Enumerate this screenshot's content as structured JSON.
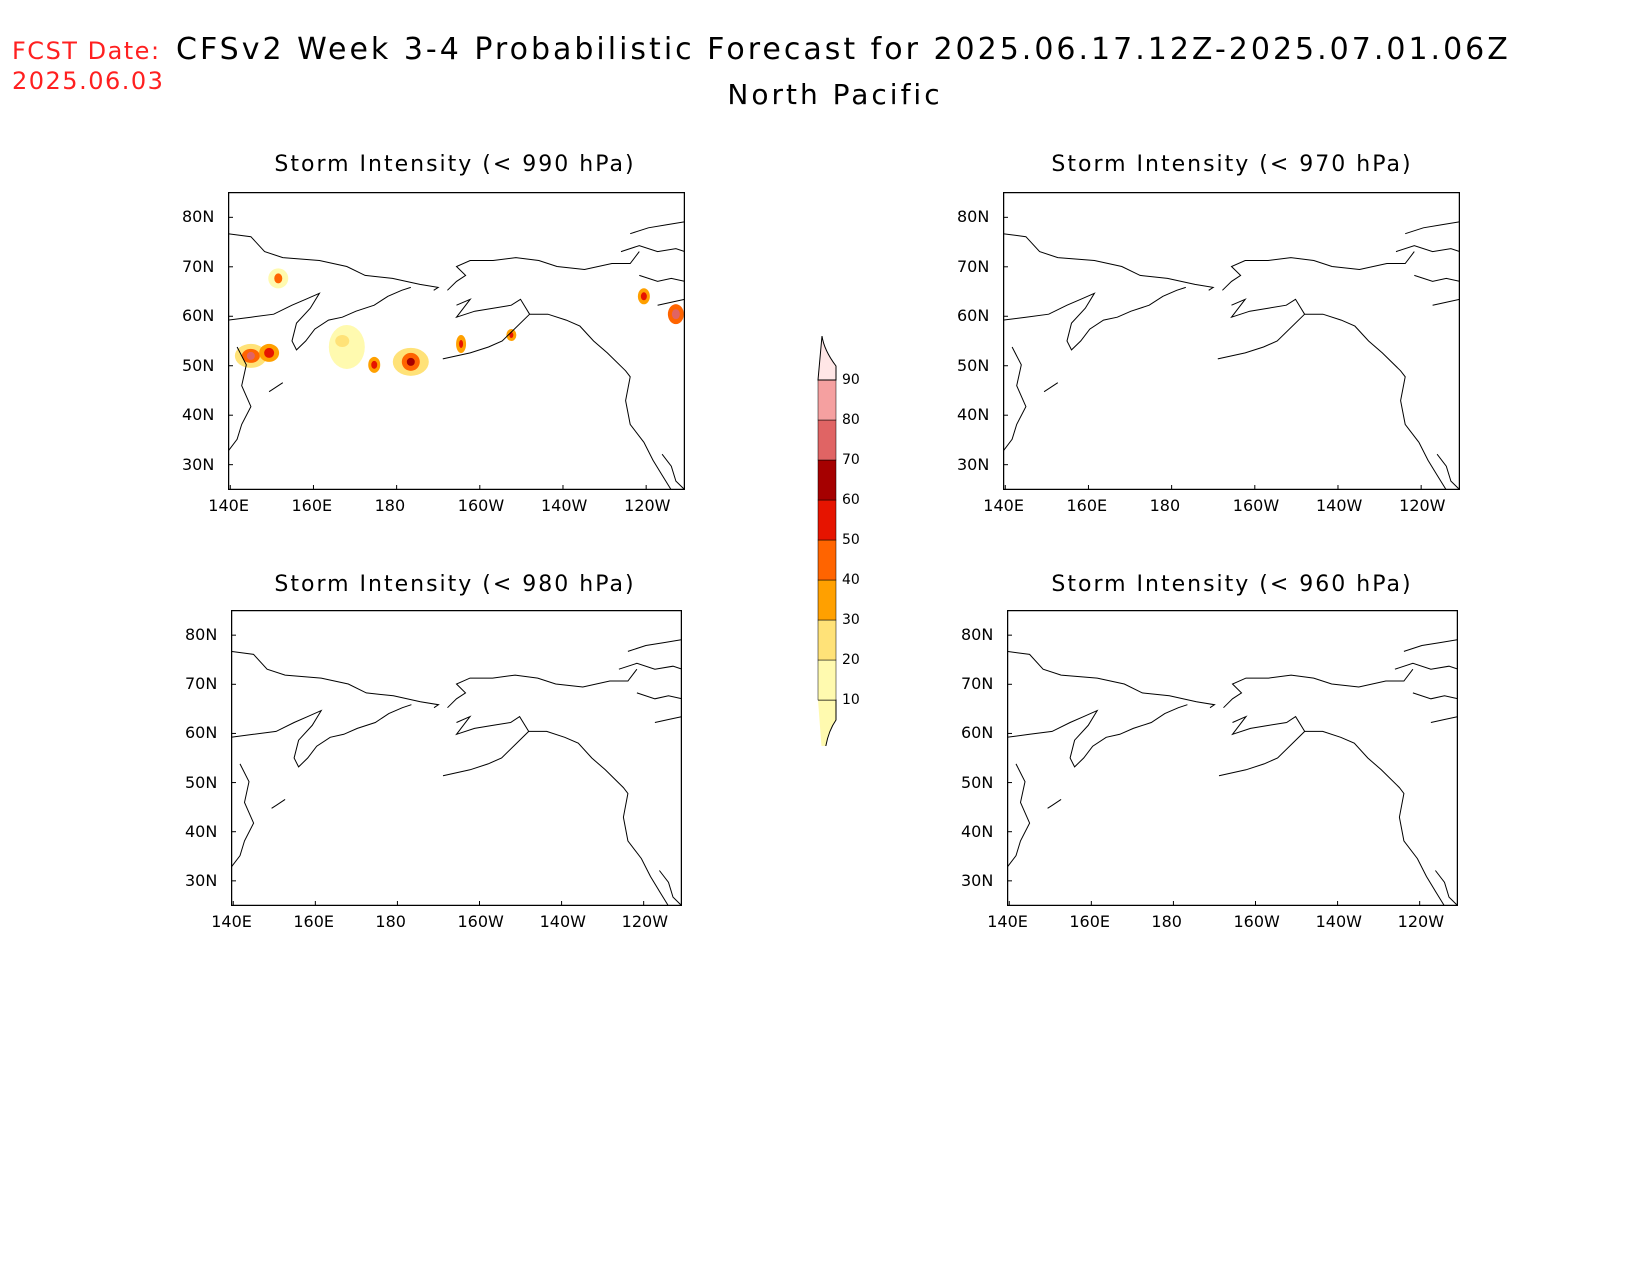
{
  "header": {
    "fcst_label": "FCST Date:",
    "fcst_date": "2025.06.03",
    "title": "CFSv2 Week 3-4 Probabilistic Forecast for 2025.06.17.12Z-2025.07.01.06Z",
    "region": "North Pacific"
  },
  "panels": [
    {
      "id": "p990",
      "title": "Storm Intensity (< 990 hPa)"
    },
    {
      "id": "p970",
      "title": "Storm Intensity (< 970 hPa)"
    },
    {
      "id": "p980",
      "title": "Storm Intensity (< 980 hPa)"
    },
    {
      "id": "p960",
      "title": "Storm Intensity (< 960 hPa)"
    }
  ],
  "axes": {
    "lat_labels": [
      "80N",
      "70N",
      "60N",
      "50N",
      "40N",
      "30N"
    ],
    "lon_labels": [
      "140E",
      "160E",
      "180",
      "160W",
      "140W",
      "120W"
    ]
  },
  "colorbar": {
    "levels": [
      "10",
      "20",
      "30",
      "40",
      "50",
      "60",
      "70",
      "80",
      "90"
    ],
    "colors": [
      "#fffaaf",
      "#ffe278",
      "#ffa000",
      "#ff6400",
      "#e61400",
      "#a50000",
      "#e06464",
      "#f5a0a0",
      "#ffe6e6"
    ]
  },
  "map_data": {
    "type": "probability-contour-map",
    "lat_range": [
      "25N",
      "85N"
    ],
    "lon_range": [
      "140E",
      "110W"
    ],
    "highlighted_panel": "Storm Intensity (< 990 hPa)",
    "other_panels_show_no_probability": true
  }
}
